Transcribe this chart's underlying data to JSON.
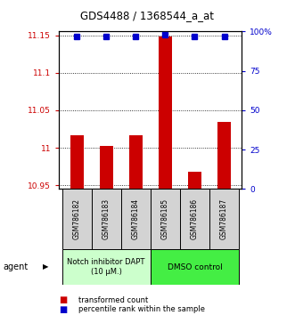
{
  "title": "GDS4488 / 1368544_a_at",
  "samples": [
    "GSM786182",
    "GSM786183",
    "GSM786184",
    "GSM786185",
    "GSM786186",
    "GSM786187"
  ],
  "bar_values": [
    11.017,
    11.002,
    11.017,
    11.148,
    10.968,
    11.035
  ],
  "dot_values": [
    97,
    97,
    97,
    98,
    97,
    97
  ],
  "ylim_left": [
    10.945,
    11.155
  ],
  "ylim_right": [
    0,
    100
  ],
  "yticks_left": [
    10.95,
    11.0,
    11.05,
    11.1,
    11.15
  ],
  "yticks_right": [
    0,
    25,
    50,
    75,
    100
  ],
  "ytick_labels_left": [
    "10.95",
    "11",
    "11.05",
    "11.1",
    "11.15"
  ],
  "ytick_labels_right": [
    "0",
    "25",
    "50",
    "75",
    "100%"
  ],
  "bar_color": "#cc0000",
  "dot_color": "#0000cc",
  "group1_label": "Notch inhibitor DAPT\n(10 μM.)",
  "group2_label": "DMSO control",
  "group1_color": "#ccffcc",
  "group2_color": "#44ee44",
  "group1_indices": [
    0,
    1,
    2
  ],
  "group2_indices": [
    3,
    4,
    5
  ],
  "legend_bar_label": "transformed count",
  "legend_dot_label": "percentile rank within the sample",
  "agent_label": "agent",
  "bar_bottom": 10.945,
  "fig_width": 3.31,
  "fig_height": 3.54,
  "dpi": 100
}
